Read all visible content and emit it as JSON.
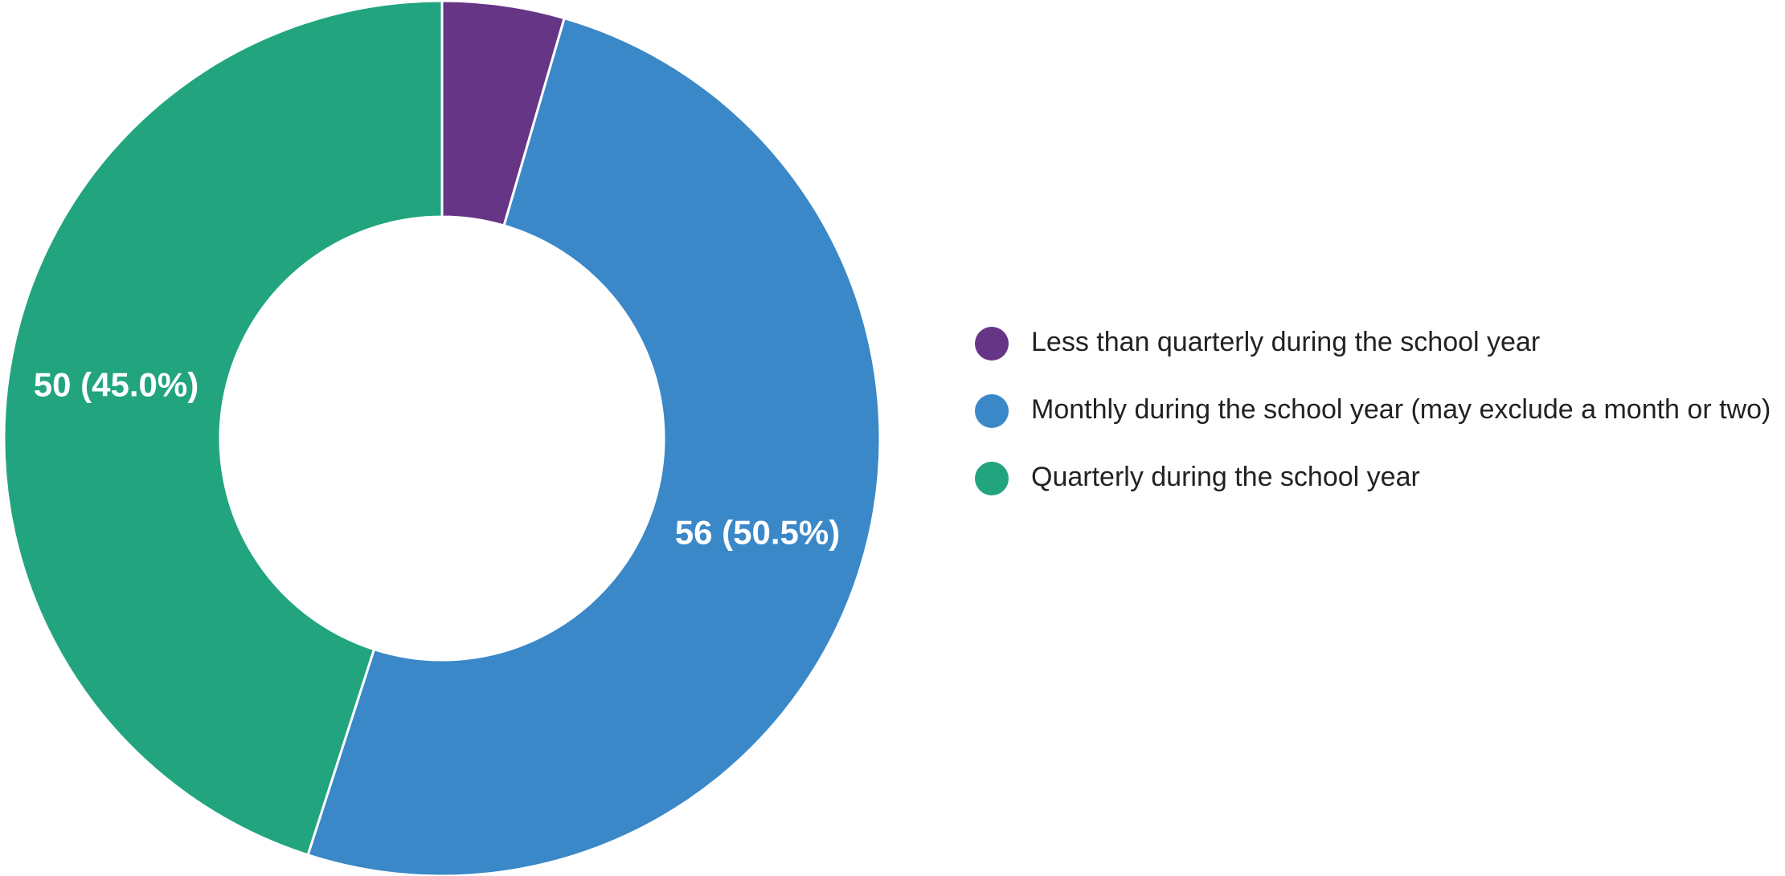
{
  "chart_data": {
    "type": "donut",
    "categories": [
      "Less than quarterly during the school year",
      "Monthly during the school year (may exclude a month or two)",
      "Quarterly during the school year"
    ],
    "values": [
      5,
      56,
      50
    ],
    "value_labels": [
      null,
      "56 (50.5%)",
      "50 (45.0%)"
    ],
    "colors": [
      "#673585",
      "#3a88c8",
      "#22a57f"
    ],
    "legend": "right"
  }
}
